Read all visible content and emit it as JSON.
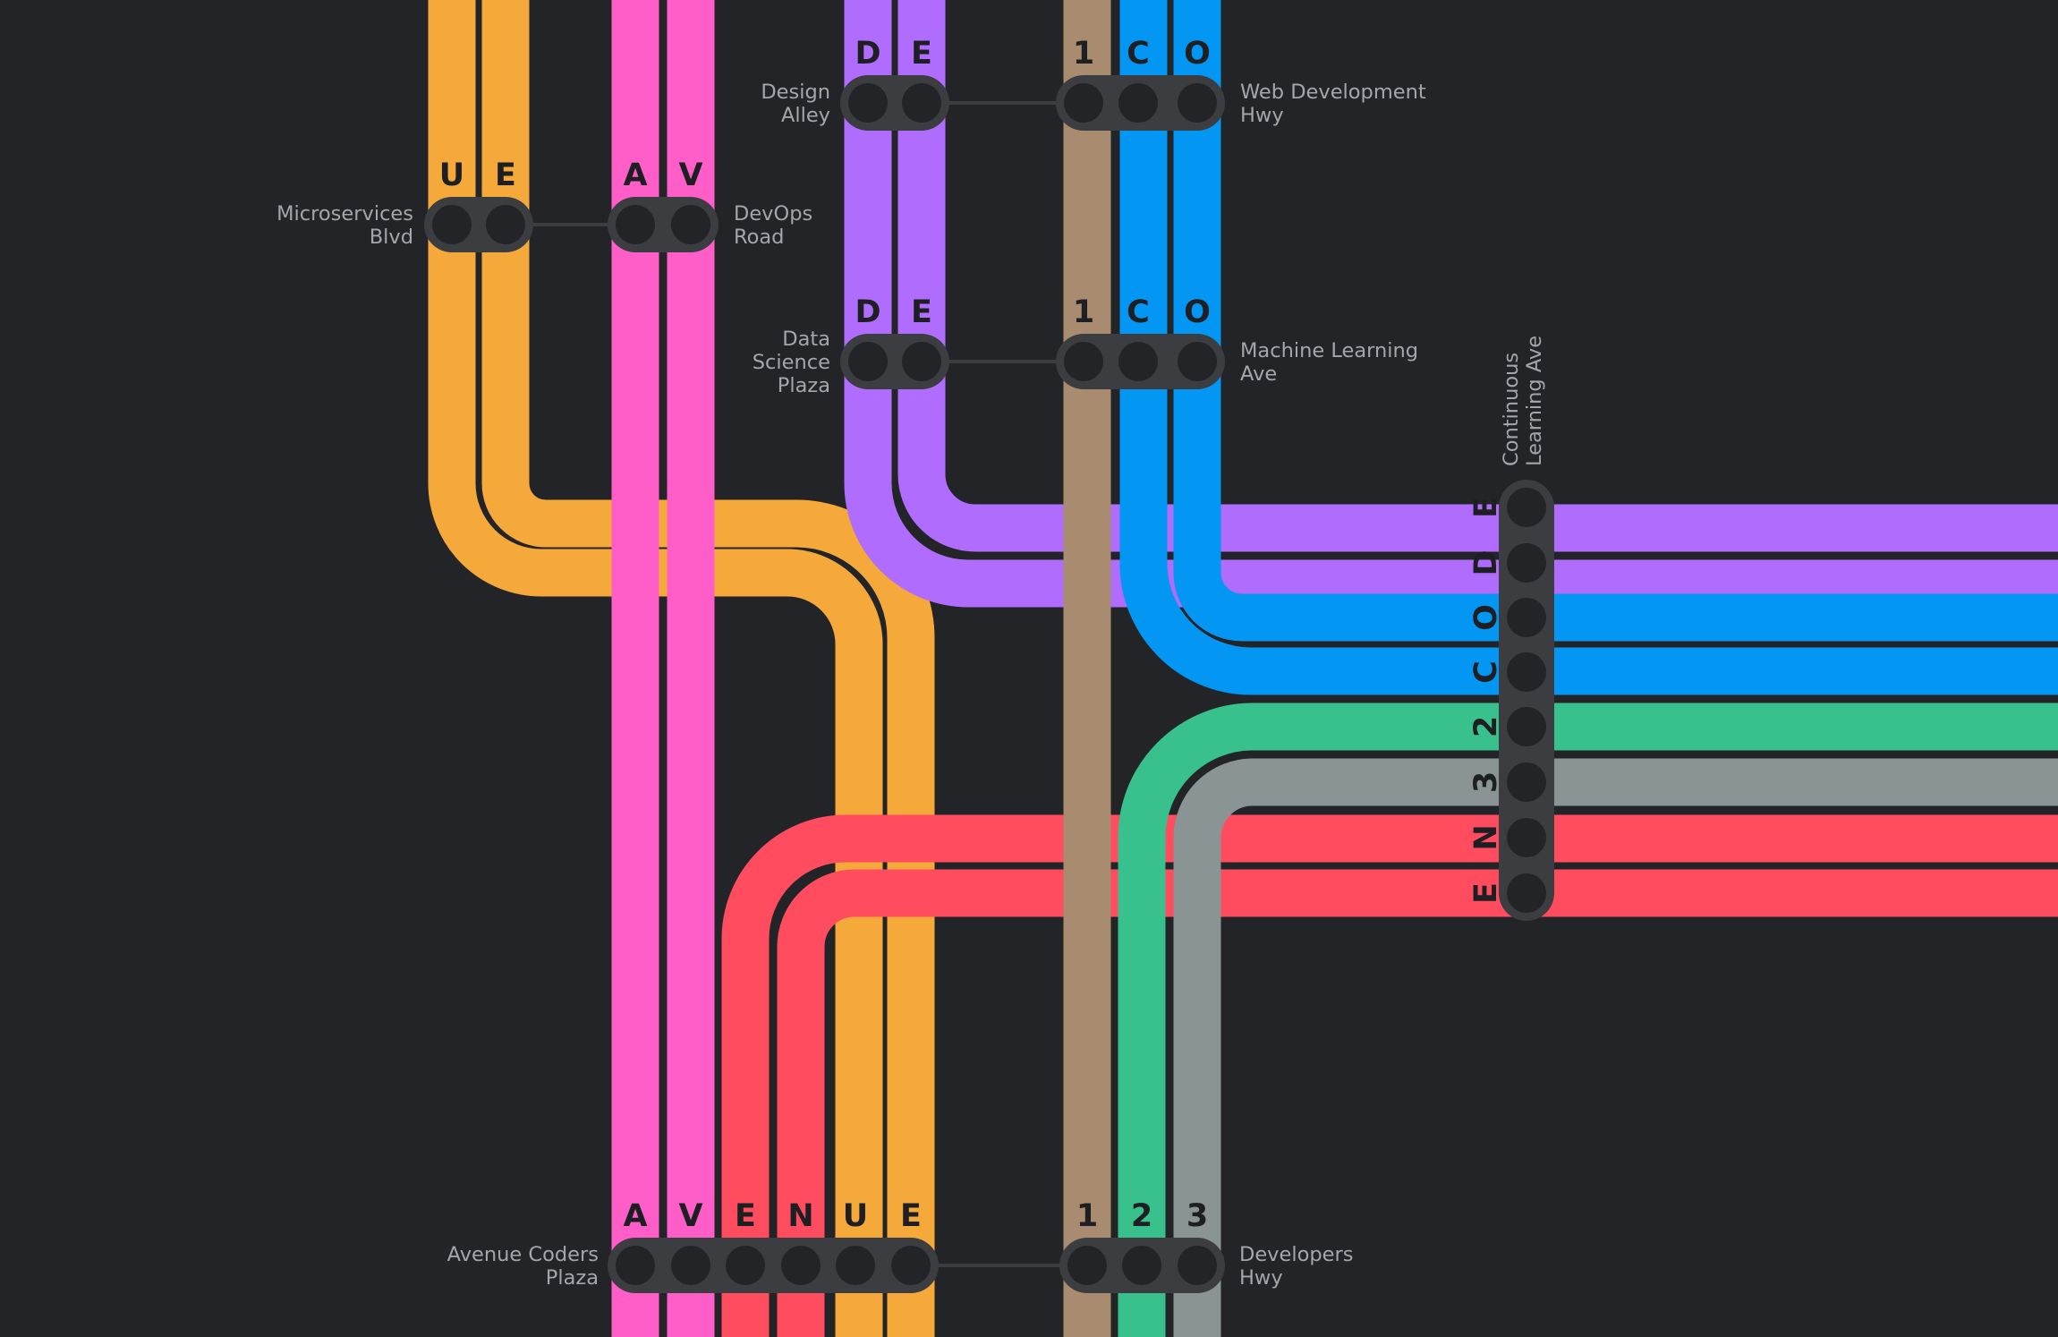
{
  "colors": {
    "background": "#232428",
    "station_body": "#3b3d41",
    "station_dot": "#232428",
    "connector": "#3b3d41",
    "label_text": "#a4a6ab",
    "letter_text": "#1e1f22",
    "line_orange": "#f5a93a",
    "line_pink": "#ff5ec9",
    "line_purple": "#b06cfd",
    "line_brown": "#a98b6f",
    "line_blue": "#0396f2",
    "line_green": "#38c18c",
    "line_gray": "#8a9495",
    "line_red": "#ff4c5f"
  },
  "stations": {
    "design_alley": {
      "label": [
        "Design",
        "Alley"
      ],
      "letters": [
        "D",
        "E"
      ]
    },
    "web_development_hwy": {
      "label": [
        "Web Development",
        "Hwy"
      ],
      "letters": [
        "1",
        "C",
        "O"
      ]
    },
    "microservices_blvd": {
      "label": [
        "Microservices",
        "Blvd"
      ],
      "letters": [
        "U",
        "E"
      ]
    },
    "devops_road": {
      "label": [
        "DevOps",
        "Road"
      ],
      "letters": [
        "A",
        "V"
      ]
    },
    "data_science_plaza": {
      "label": [
        "Data",
        "Science",
        "Plaza"
      ],
      "letters": [
        "D",
        "E"
      ]
    },
    "machine_learning_ave": {
      "label": [
        "Machine Learning",
        "Ave"
      ],
      "letters": [
        "1",
        "C",
        "O"
      ]
    },
    "continuous_learning_ave": {
      "label": [
        "Continuous",
        "Learning Ave"
      ],
      "letters": [
        "E",
        "D",
        "O",
        "C",
        "2",
        "3",
        "N",
        "E"
      ]
    },
    "avenue_coders_plaza": {
      "label": [
        "Avenue Coders",
        "Plaza"
      ],
      "letters": [
        "A",
        "V",
        "E",
        "N",
        "U",
        "E"
      ]
    },
    "developers_hwy": {
      "label": [
        "Developers",
        "Hwy"
      ],
      "letters": [
        "1",
        "2",
        "3"
      ]
    }
  }
}
